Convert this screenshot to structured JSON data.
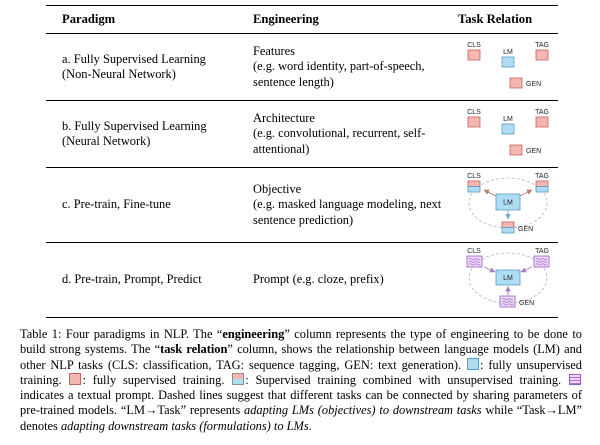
{
  "table": {
    "headers": [
      "Paradigm",
      "Engineering",
      "Task Relation"
    ],
    "rows": [
      {
        "paradigm": [
          "a. Fully Supervised Learning",
          "(Non-Neural Network)"
        ],
        "engineering": [
          "Features",
          "(e.g. word identity, part-of-speech, sentence length)"
        ]
      },
      {
        "paradigm": [
          "b. Fully Supervised Learning",
          "(Neural Network)"
        ],
        "engineering": [
          "Architecture",
          "(e.g. convolutional, recurrent, self-attentional)"
        ]
      },
      {
        "paradigm": [
          "c. Pre-train, Fine-tune"
        ],
        "engineering": [
          "Objective",
          "(e.g. masked language modeling, next sentence prediction)"
        ]
      },
      {
        "paradigm": [
          "d. Pre-train, Prompt, Predict"
        ],
        "engineering": [
          "Prompt (e.g. cloze, prefix)"
        ]
      }
    ]
  },
  "diagram_labels": {
    "cls": "CLS",
    "lm": "LM",
    "tag": "TAG",
    "gen": "GEN"
  },
  "colors": {
    "supervised_pink": "#F5B6B2",
    "unsupervised_blue": "#AEDCF2",
    "prompt_purple": "#EBD7F8"
  },
  "caption": {
    "segments": [
      {
        "t": "text",
        "v": "Table 1: Four paradigms in NLP. The “"
      },
      {
        "t": "bold",
        "v": "engineering"
      },
      {
        "t": "text",
        "v": "” column represents the type of engineering to be done to build strong systems. The “"
      },
      {
        "t": "bold",
        "v": "task relation"
      },
      {
        "t": "text",
        "v": "” column, shows the relationship between language models (LM) and other NLP tasks (CLS: classification, TAG: sequence tagging, GEN: text generation). "
      },
      {
        "t": "icon",
        "v": "blue-box"
      },
      {
        "t": "text",
        "v": ": fully unsupervised training. "
      },
      {
        "t": "icon",
        "v": "pink-box"
      },
      {
        "t": "text",
        "v": ": fully supervised training. "
      },
      {
        "t": "icon",
        "v": "stacked-box"
      },
      {
        "t": "text",
        "v": ": Supervised training combined with unsupervised training. "
      },
      {
        "t": "icon",
        "v": "prompt-box"
      },
      {
        "t": "text",
        "v": " indicates a textual prompt. Dashed lines suggest that different tasks can be connected by sharing parameters of pre-trained models. “LM→Task” represents "
      },
      {
        "t": "italic",
        "v": "adapting LMs (objectives) to downstream tasks"
      },
      {
        "t": "text",
        "v": " while “Task→LM” denotes "
      },
      {
        "t": "italic",
        "v": "adapting downstream tasks (formulations) to LMs"
      },
      {
        "t": "text",
        "v": "."
      }
    ]
  }
}
